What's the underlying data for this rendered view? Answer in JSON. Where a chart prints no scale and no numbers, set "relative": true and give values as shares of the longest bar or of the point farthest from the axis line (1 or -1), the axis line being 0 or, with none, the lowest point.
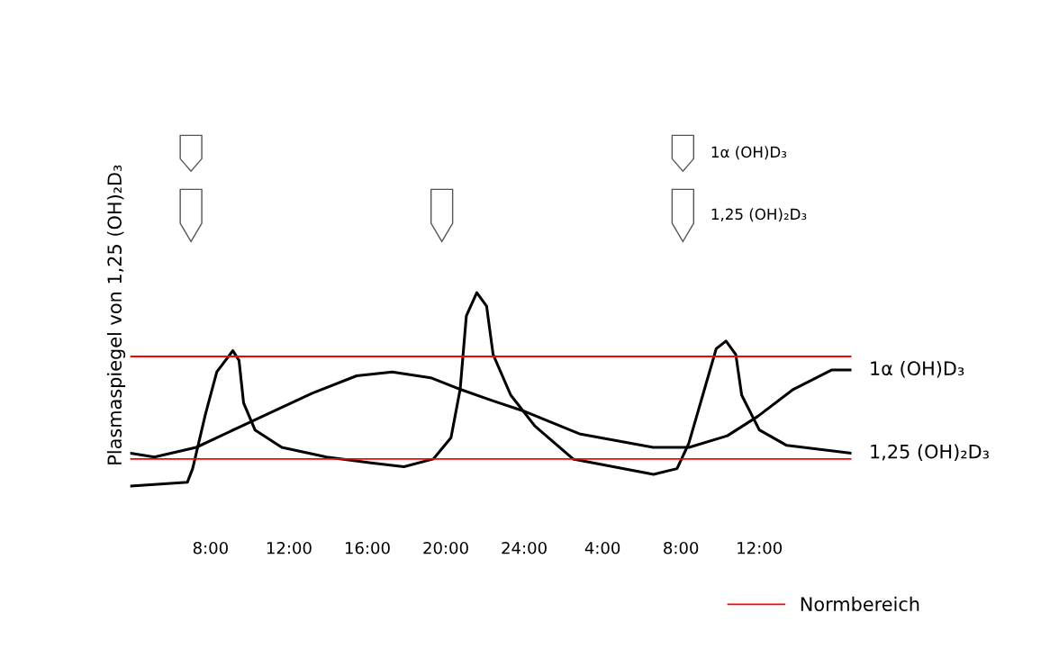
{
  "chart_data": {
    "type": "line",
    "relative": true,
    "ylabel": "Plasmaspiegel von 1,25 (OH)₂D₃",
    "xlim": [
      "2000-01-01T03:54",
      "2000-01-02T16:42"
    ],
    "xticks": [
      {
        "value": "2000-01-01T08:00",
        "label": "8:00"
      },
      {
        "value": "2000-01-01T12:00",
        "label": "12:00"
      },
      {
        "value": "2000-01-01T16:00",
        "label": "16:00"
      },
      {
        "value": "2000-01-01T20:00",
        "label": "20:00"
      },
      {
        "value": "2000-01-02T00:00",
        "label": "24:00"
      },
      {
        "value": "2000-01-02T04:00",
        "label": "4:00"
      },
      {
        "value": "2000-01-02T08:00",
        "label": "8:00"
      },
      {
        "value": "2000-01-02T12:00",
        "label": "12:00"
      }
    ],
    "tick_labels": "x",
    "grid": false,
    "legend": "bottom right",
    "marker": "none",
    "line_style": "solid",
    "series": [
      {
        "name": "1α (OH)D₃",
        "color": "#000000",
        "x": [
          "2000-01-01T03:55",
          "2000-01-01T05:08",
          "2000-01-01T07:16",
          "2000-01-01T10:00",
          "2000-01-01T13:11",
          "2000-01-01T15:27",
          "2000-01-01T17:16",
          "2000-01-01T19:14",
          "2000-01-01T20:44",
          "2000-01-01T22:25",
          "2000-01-01T23:55",
          "2000-01-02T02:49",
          "2000-01-02T06:35",
          "2000-01-02T08:25",
          "2000-01-02T10:22",
          "2000-01-02T11:55",
          "2000-01-02T13:44",
          "2000-01-02T15:41",
          "2000-01-02T16:42"
        ],
        "values": [
          0.17,
          0.15,
          0.2,
          0.33,
          0.48,
          0.57,
          0.59,
          0.56,
          0.5,
          0.44,
          0.39,
          0.27,
          0.2,
          0.2,
          0.26,
          0.36,
          0.5,
          0.6,
          0.6
        ]
      },
      {
        "name": "1,25 (OH)₂D₃",
        "color": "#000000",
        "x": [
          "2000-01-01T03:55",
          "2000-01-01T06:49",
          "2000-01-01T07:05",
          "2000-01-01T07:44",
          "2000-01-01T08:19",
          "2000-01-01T09:08",
          "2000-01-01T09:27",
          "2000-01-01T09:41",
          "2000-01-01T10:16",
          "2000-01-01T11:38",
          "2000-01-01T13:55",
          "2000-01-01T16:11",
          "2000-01-01T17:52",
          "2000-01-01T19:22",
          "2000-01-01T20:16",
          "2000-01-01T20:44",
          "2000-01-01T21:03",
          "2000-01-01T21:35",
          "2000-01-01T22:05",
          "2000-01-01T22:25",
          "2000-01-01T23:19",
          "2000-01-02T00:33",
          "2000-01-02T02:30",
          "2000-01-02T06:36",
          "2000-01-02T07:48",
          "2000-01-02T08:24",
          "2000-01-02T09:12",
          "2000-01-02T09:48",
          "2000-01-02T10:18",
          "2000-01-02T10:48",
          "2000-01-02T11:06",
          "2000-01-02T12:00",
          "2000-01-02T13:24",
          "2000-01-02T16:42"
        ],
        "values": [
          0.0,
          0.02,
          0.09,
          0.37,
          0.59,
          0.7,
          0.65,
          0.43,
          0.29,
          0.2,
          0.15,
          0.12,
          0.1,
          0.14,
          0.25,
          0.5,
          0.88,
          1.0,
          0.93,
          0.68,
          0.47,
          0.31,
          0.14,
          0.06,
          0.09,
          0.22,
          0.5,
          0.71,
          0.75,
          0.68,
          0.47,
          0.29,
          0.21,
          0.17
        ]
      }
    ],
    "ref_lines": [
      {
        "axis": "y",
        "value": 0.67,
        "label": "Normbereich",
        "color": "#ff0000"
      },
      {
        "axis": "y",
        "value": 0.14,
        "color": "#ff0000"
      }
    ],
    "annotations": [
      "1α (OH)D₃",
      "1,25 (OH)₂D₃"
    ]
  }
}
